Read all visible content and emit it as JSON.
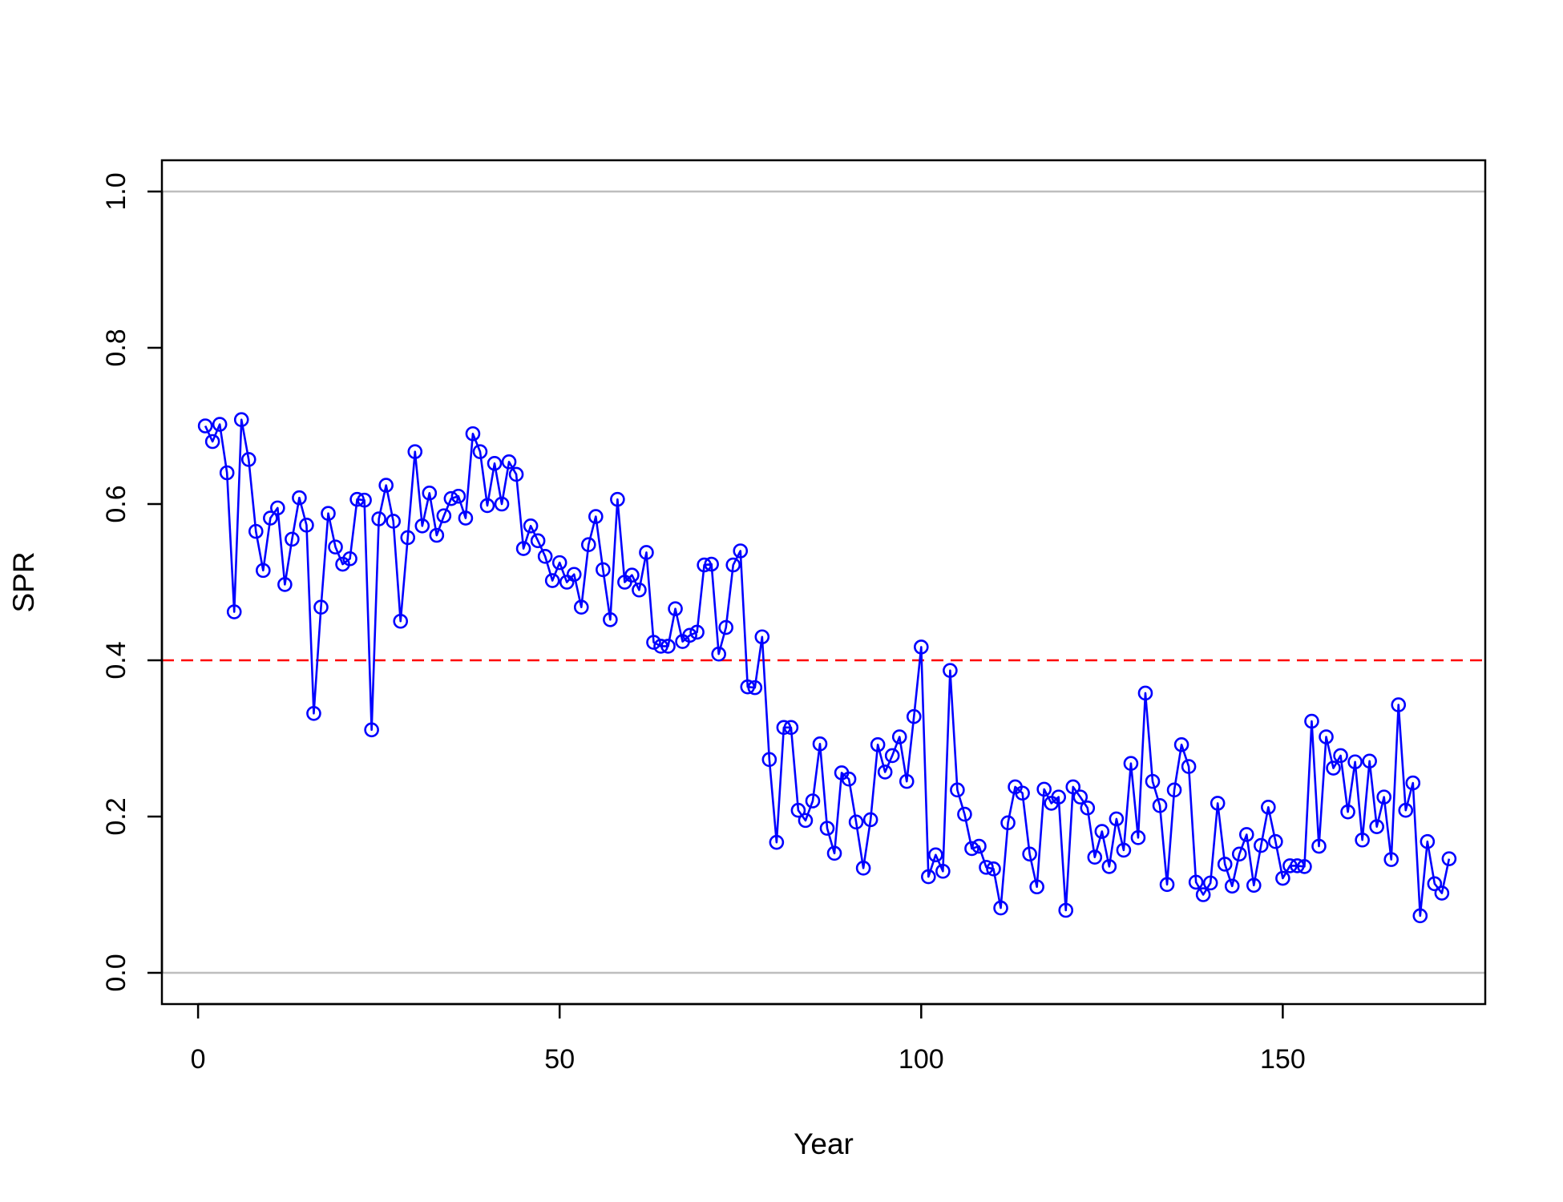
{
  "chart_data": {
    "type": "line",
    "title": "",
    "xlabel": "Year",
    "ylabel": "SPR",
    "xlim": [
      -5,
      178
    ],
    "ylim": [
      -0.04,
      1.04
    ],
    "x_ticks": [
      0,
      50,
      100,
      150
    ],
    "x_tick_labels": [
      "0",
      "50",
      "100",
      "150"
    ],
    "y_ticks": [
      0.0,
      0.2,
      0.4,
      0.6,
      0.8,
      1.0
    ],
    "y_tick_labels": [
      "0.0",
      "0.2",
      "0.4",
      "0.6",
      "0.8",
      "1.0"
    ],
    "grid": false,
    "legend": "none",
    "reference_lines": [
      {
        "y": 1.0,
        "style": "solid",
        "color": "#bebebe"
      },
      {
        "y": 0.0,
        "style": "solid",
        "color": "#bebebe"
      },
      {
        "y": 0.4,
        "style": "dashed",
        "color": "#ff0000"
      }
    ],
    "series": [
      {
        "color": "#0000ff",
        "marker": "open-circle",
        "x_start": 1,
        "values": [
          0.7,
          0.68,
          0.702,
          0.64,
          0.462,
          0.708,
          0.657,
          0.565,
          0.515,
          0.582,
          0.595,
          0.497,
          0.555,
          0.608,
          0.573,
          0.332,
          0.468,
          0.588,
          0.545,
          0.523,
          0.53,
          0.606,
          0.605,
          0.311,
          0.581,
          0.624,
          0.578,
          0.45,
          0.557,
          0.667,
          0.572,
          0.614,
          0.56,
          0.585,
          0.607,
          0.61,
          0.582,
          0.69,
          0.667,
          0.598,
          0.652,
          0.6,
          0.654,
          0.638,
          0.543,
          0.572,
          0.553,
          0.533,
          0.502,
          0.525,
          0.5,
          0.51,
          0.468,
          0.548,
          0.584,
          0.516,
          0.452,
          0.606,
          0.5,
          0.509,
          0.49,
          0.538,
          0.423,
          0.418,
          0.418,
          0.466,
          0.424,
          0.432,
          0.436,
          0.522,
          0.523,
          0.408,
          0.442,
          0.522,
          0.54,
          0.366,
          0.365,
          0.43,
          0.273,
          0.167,
          0.314,
          0.314,
          0.208,
          0.195,
          0.22,
          0.293,
          0.185,
          0.153,
          0.256,
          0.248,
          0.193,
          0.134,
          0.196,
          0.292,
          0.257,
          0.278,
          0.302,
          0.245,
          0.328,
          0.417,
          0.123,
          0.151,
          0.13,
          0.387,
          0.234,
          0.203,
          0.159,
          0.162,
          0.135,
          0.133,
          0.083,
          0.192,
          0.238,
          0.23,
          0.152,
          0.11,
          0.235,
          0.217,
          0.225,
          0.08,
          0.238,
          0.225,
          0.211,
          0.148,
          0.181,
          0.136,
          0.197,
          0.157,
          0.268,
          0.173,
          0.358,
          0.245,
          0.214,
          0.113,
          0.234,
          0.292,
          0.264,
          0.116,
          0.1,
          0.115,
          0.217,
          0.139,
          0.111,
          0.152,
          0.177,
          0.112,
          0.163,
          0.212,
          0.168,
          0.121,
          0.137,
          0.137,
          0.136,
          0.322,
          0.162,
          0.302,
          0.262,
          0.278,
          0.206,
          0.27,
          0.17,
          0.271,
          0.187,
          0.225,
          0.145,
          0.343,
          0.208,
          0.243,
          0.073,
          0.168,
          0.114,
          0.102,
          0.146
        ]
      }
    ]
  }
}
